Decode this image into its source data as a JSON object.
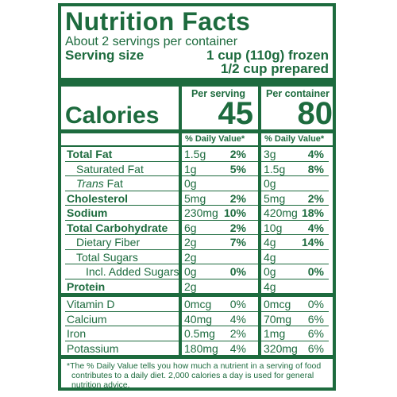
{
  "title": "Nutrition Facts",
  "servings_per_container": "About 2 servings per container",
  "serving_size": {
    "label": "Serving size",
    "value_line1": "1 cup (110g) frozen",
    "value_line2": "1/2 cup prepared"
  },
  "calories": {
    "label": "Calories",
    "per_serving_header": "Per serving",
    "per_container_header": "Per container",
    "per_serving": "45",
    "per_container": "80"
  },
  "dv_header": "% Daily Value*",
  "nutrients": [
    {
      "name": "Total Fat",
      "s_amt": "1.5g",
      "s_dv": "2%",
      "c_amt": "3g",
      "c_dv": "4%"
    },
    {
      "name": "Saturated Fat",
      "s_amt": "1g",
      "s_dv": "5%",
      "c_amt": "1.5g",
      "c_dv": "8%"
    },
    {
      "name_prefix": "Trans",
      "name": " Fat",
      "s_amt": "0g",
      "s_dv": "",
      "c_amt": "0g",
      "c_dv": ""
    },
    {
      "name": "Cholesterol",
      "s_amt": "5mg",
      "s_dv": "2%",
      "c_amt": "5mg",
      "c_dv": "2%"
    },
    {
      "name": "Sodium",
      "s_amt": "230mg",
      "s_dv": "10%",
      "c_amt": "420mg",
      "c_dv": "18%"
    },
    {
      "name": "Total Carbohydrate",
      "s_amt": "6g",
      "s_dv": "2%",
      "c_amt": "10g",
      "c_dv": "4%"
    },
    {
      "name": "Dietary Fiber",
      "s_amt": "2g",
      "s_dv": "7%",
      "c_amt": "4g",
      "c_dv": "14%"
    },
    {
      "name": "Total Sugars",
      "s_amt": "2g",
      "s_dv": "",
      "c_amt": "4g",
      "c_dv": ""
    },
    {
      "name": "Incl. Added Sugars",
      "s_amt": "0g",
      "s_dv": "0%",
      "c_amt": "0g",
      "c_dv": "0%"
    },
    {
      "name": "Protein",
      "s_amt": "2g",
      "s_dv": "",
      "c_amt": "4g",
      "c_dv": ""
    }
  ],
  "vitamins": [
    {
      "name": "Vitamin D",
      "s_amt": "0mcg",
      "s_dv": "0%",
      "c_amt": "0mcg",
      "c_dv": "0%"
    },
    {
      "name": "Calcium",
      "s_amt": "40mg",
      "s_dv": "4%",
      "c_amt": "70mg",
      "c_dv": "6%"
    },
    {
      "name": "Iron",
      "s_amt": "0.5mg",
      "s_dv": "2%",
      "c_amt": "1mg",
      "c_dv": "6%"
    },
    {
      "name": "Potassium",
      "s_amt": "180mg",
      "s_dv": "4%",
      "c_amt": "320mg",
      "c_dv": "6%"
    }
  ],
  "footnote_line1": "*The % Daily Value tells you how much a nutrient in a serving of food",
  "footnote_line2": "contributes to a daily diet. 2,000 calories a day is used for general",
  "footnote_line3": "nutrition advice.",
  "colors": {
    "label_green": "#1d6b3e",
    "background": "#ffffff"
  }
}
